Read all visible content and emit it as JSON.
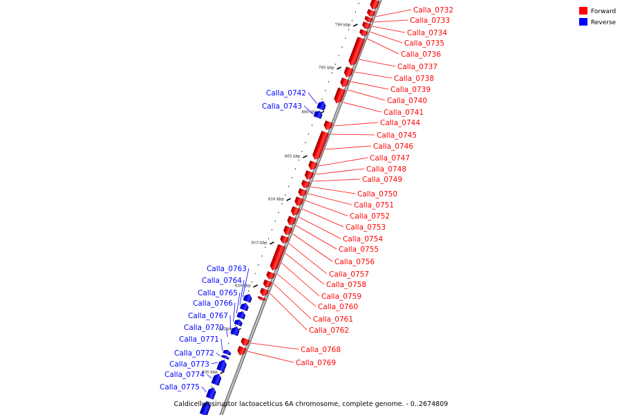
{
  "caption": "Caldicellulosiruptor lactoaceticus 6A chromosome, complete genome. - 0..2674809",
  "legend": [
    {
      "label": "Forward",
      "color": "#ff0000"
    },
    {
      "label": "Reverse",
      "color": "#0000ff"
    }
  ],
  "colors": {
    "forward": "#ff0000",
    "reverse": "#0000ff",
    "backbone": "#a8a8a8",
    "tick": "#000000"
  },
  "ticks": [
    "790 kbp",
    "795 kbp",
    "800 kbp",
    "805 kbp",
    "810 kbp",
    "815 kbp",
    "820 kbp",
    "825 kbp",
    "830 kbp"
  ],
  "forward_genes": [
    "Calla_0732",
    "Calla_0733",
    "Calla_0734",
    "Calla_0735",
    "Calla_0736",
    "Calla_0737",
    "Calla_0738",
    "Calla_0739",
    "Calla_0740",
    "Calla_0741",
    "Calla_0744",
    "Calla_0745",
    "Calla_0746",
    "Calla_0747",
    "Calla_0748",
    "Calla_0749",
    "Calla_0750",
    "Calla_0751",
    "Calla_0752",
    "Calla_0753",
    "Calla_0754",
    "Calla_0755",
    "Calla_0756",
    "Calla_0757",
    "Calla_0758",
    "Calla_0759",
    "Calla_0760",
    "Calla_0761",
    "Calla_0762",
    "Calla_0768",
    "Calla_0769"
  ],
  "reverse_genes": [
    "Calla_0742",
    "Calla_0743",
    "Calla_0763",
    "Calla_0764",
    "Calla_0765",
    "Calla_0766",
    "Calla_0767",
    "Calla_0770",
    "Calla_0771",
    "Calla_0772",
    "Calla_0773",
    "Calla_0774",
    "Calla_0775"
  ]
}
